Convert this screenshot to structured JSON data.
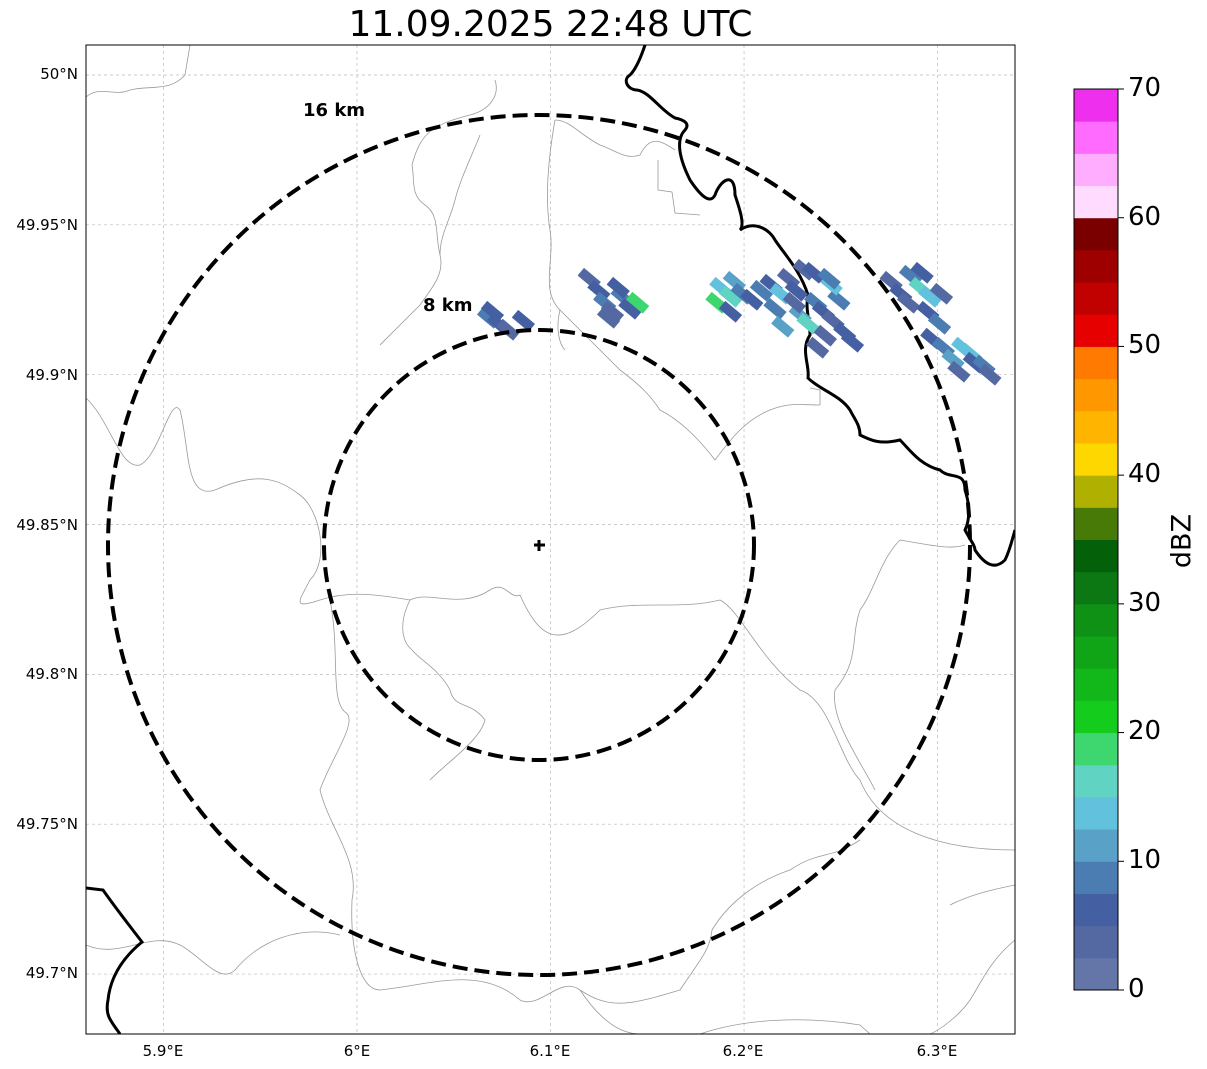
{
  "title": "11.09.2025 22:48 UTC",
  "map": {
    "y_ticks": [
      "50°N",
      "49.95°N",
      "49.9°N",
      "49.85°N",
      "49.8°N",
      "49.75°N",
      "49.7°N"
    ],
    "x_ticks": [
      "5.9°E",
      "6°E",
      "6.1°E",
      "6.2°E",
      "6.3°E"
    ],
    "lon_range": [
      5.86,
      6.34
    ],
    "lat_range": [
      49.68,
      50.01
    ],
    "gridlines": true,
    "radar_center": {
      "lon": 6.095,
      "lat": 49.843
    },
    "range_rings": [
      {
        "label": "8 km",
        "radius_km": 8
      },
      {
        "label": "16 km",
        "radius_km": 16
      }
    ],
    "boundaries": [
      "national border (thick black)",
      "district boundaries (thin grey)"
    ]
  },
  "colorbar": {
    "label": "dBZ",
    "ticks": [
      "0",
      "10",
      "20",
      "30",
      "40",
      "50",
      "60",
      "70"
    ],
    "min": 0,
    "max": 70,
    "step": 2.5,
    "colors": [
      "#6475a8",
      "#5468a2",
      "#4560a2",
      "#4c7db2",
      "#5aa1c8",
      "#62c1dc",
      "#60d3c3",
      "#3dd66f",
      "#13cc1c",
      "#12b81a",
      "#0fa516",
      "#0e9115",
      "#0b7813",
      "#056109",
      "#477a07",
      "#b0b000",
      "#ffd700",
      "#ffb400",
      "#ff9800",
      "#ff7a00",
      "#e60000",
      "#c10000",
      "#9e0000",
      "#7a0000",
      "#ffdcff",
      "#ffaeff",
      "#ff6bff",
      "#ee30ee"
    ]
  },
  "echoes": [
    {
      "cells": [
        [
          6.068,
          49.919,
          3
        ],
        [
          6.073,
          49.917,
          2
        ],
        [
          6.078,
          49.915,
          1
        ],
        [
          6.07,
          49.921,
          2
        ],
        [
          6.086,
          49.918,
          2
        ]
      ]
    },
    {
      "cells": [
        [
          6.12,
          49.932,
          1
        ],
        [
          6.125,
          49.928,
          2
        ],
        [
          6.128,
          49.924,
          3
        ],
        [
          6.132,
          49.921,
          1
        ],
        [
          6.137,
          49.926,
          3
        ],
        [
          6.141,
          49.922,
          2
        ],
        [
          6.145,
          49.924,
          7
        ],
        [
          6.135,
          49.929,
          2
        ],
        [
          6.13,
          49.919,
          1
        ]
      ]
    },
    {
      "cells": [
        [
          6.188,
          49.929,
          5
        ],
        [
          6.193,
          49.926,
          6
        ],
        [
          6.186,
          49.924,
          7
        ],
        [
          6.195,
          49.931,
          4
        ],
        [
          6.199,
          49.927,
          3
        ],
        [
          6.204,
          49.925,
          2
        ],
        [
          6.209,
          49.928,
          3
        ],
        [
          6.214,
          49.93,
          2
        ],
        [
          6.219,
          49.927,
          5
        ],
        [
          6.223,
          49.932,
          1
        ],
        [
          6.227,
          49.928,
          2
        ],
        [
          6.231,
          49.935,
          1
        ],
        [
          6.229,
          49.92,
          4
        ],
        [
          6.233,
          49.917,
          6
        ],
        [
          6.237,
          49.924,
          3
        ],
        [
          6.241,
          49.921,
          2
        ],
        [
          6.246,
          49.918,
          1
        ],
        [
          6.249,
          49.925,
          3
        ],
        [
          6.245,
          49.93,
          5
        ],
        [
          6.252,
          49.914,
          2
        ],
        [
          6.242,
          49.913,
          1
        ],
        [
          6.256,
          49.911,
          2
        ],
        [
          6.238,
          49.909,
          1
        ],
        [
          6.236,
          49.934,
          2
        ],
        [
          6.244,
          49.932,
          3
        ],
        [
          6.226,
          49.924,
          1
        ],
        [
          6.216,
          49.922,
          3
        ],
        [
          6.193,
          49.921,
          2
        ],
        [
          6.22,
          49.916,
          4
        ]
      ]
    },
    {
      "cells": [
        [
          6.276,
          49.931,
          1
        ],
        [
          6.281,
          49.927,
          2
        ],
        [
          6.286,
          49.933,
          3
        ],
        [
          6.291,
          49.929,
          6
        ],
        [
          6.296,
          49.926,
          5
        ],
        [
          6.285,
          49.924,
          1
        ],
        [
          6.295,
          49.921,
          2
        ],
        [
          6.301,
          49.917,
          3
        ],
        [
          6.302,
          49.927,
          1
        ],
        [
          6.297,
          49.912,
          2
        ],
        [
          6.303,
          49.909,
          3
        ],
        [
          6.308,
          49.905,
          4
        ],
        [
          6.313,
          49.909,
          5
        ],
        [
          6.317,
          49.907,
          5
        ],
        [
          6.319,
          49.904,
          2
        ],
        [
          6.311,
          49.901,
          1
        ],
        [
          6.324,
          49.903,
          3
        ],
        [
          6.327,
          49.9,
          1
        ],
        [
          6.292,
          49.934,
          2
        ]
      ]
    }
  ]
}
